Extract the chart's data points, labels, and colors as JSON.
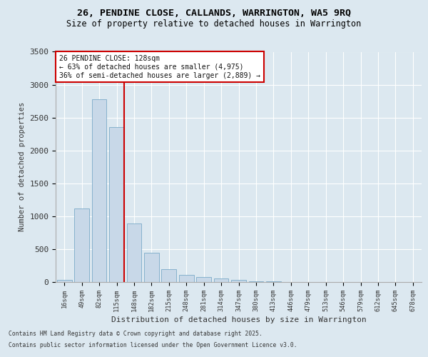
{
  "title1": "26, PENDINE CLOSE, CALLANDS, WARRINGTON, WA5 9RQ",
  "title2": "Size of property relative to detached houses in Warrington",
  "xlabel": "Distribution of detached houses by size in Warrington",
  "ylabel": "Number of detached properties",
  "categories": [
    "16sqm",
    "49sqm",
    "82sqm",
    "115sqm",
    "148sqm",
    "182sqm",
    "215sqm",
    "248sqm",
    "281sqm",
    "314sqm",
    "347sqm",
    "380sqm",
    "413sqm",
    "446sqm",
    "479sqm",
    "513sqm",
    "546sqm",
    "579sqm",
    "612sqm",
    "645sqm",
    "678sqm"
  ],
  "values": [
    35,
    1120,
    2780,
    2350,
    890,
    445,
    200,
    105,
    80,
    55,
    30,
    15,
    10,
    5,
    2,
    2,
    1,
    1,
    0,
    0,
    0
  ],
  "bar_color": "#c8d8e8",
  "bar_edge_color": "#7aaac8",
  "vline_color": "#cc0000",
  "annotation_title": "26 PENDINE CLOSE: 128sqm",
  "annotation_line1": "← 63% of detached houses are smaller (4,975)",
  "annotation_line2": "36% of semi-detached houses are larger (2,889) →",
  "annotation_box_color": "#cc0000",
  "annotation_bg": "#ffffff",
  "ylim": [
    0,
    3500
  ],
  "yticks": [
    0,
    500,
    1000,
    1500,
    2000,
    2500,
    3000,
    3500
  ],
  "footnote1": "Contains HM Land Registry data © Crown copyright and database right 2025.",
  "footnote2": "Contains public sector information licensed under the Open Government Licence v3.0.",
  "bg_color": "#dce8f0",
  "plot_bg_color": "#dce8f0"
}
